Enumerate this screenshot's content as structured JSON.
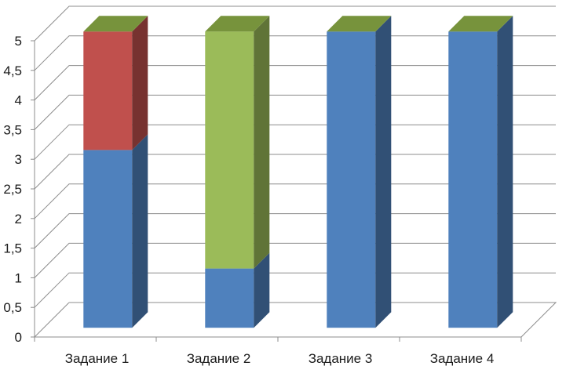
{
  "chart_data": {
    "type": "bar",
    "stacked": true,
    "three_d": true,
    "title": "",
    "xlabel": "",
    "ylabel": "",
    "ylim": [
      0,
      5
    ],
    "grid": true,
    "legend": "none",
    "categories": [
      "Задание 1",
      "Задание 2",
      "Задание 3",
      "Задание 4"
    ],
    "y_ticks": [
      "0",
      "0,5",
      "1",
      "1,5",
      "2",
      "2,5",
      "3",
      "3,5",
      "4",
      "4,5",
      "5"
    ],
    "series": [
      {
        "values": [
          3,
          1,
          5,
          5
        ],
        "color": "#4f81bd"
      },
      {
        "values": [
          2,
          0,
          0,
          0
        ],
        "color": "#c0504d"
      },
      {
        "values": [
          0,
          4,
          0,
          0
        ],
        "color": "#9bbb59"
      }
    ]
  }
}
